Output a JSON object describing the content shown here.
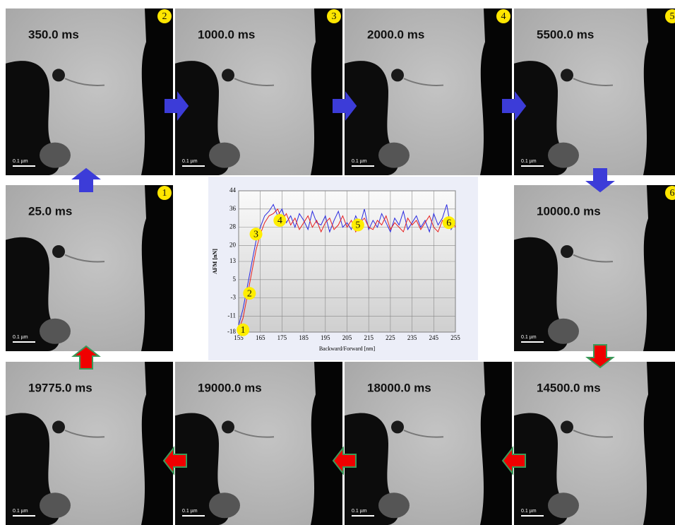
{
  "panels": [
    {
      "label": "350.0 ms",
      "badge": "2",
      "scale_bar": "0.1 µm"
    },
    {
      "label": "1000.0 ms",
      "badge": "3",
      "scale_bar": "0.1 µm"
    },
    {
      "label": "2000.0 ms",
      "badge": "4",
      "scale_bar": "0.1 µm"
    },
    {
      "label": "5500.0 ms",
      "badge": "5",
      "scale_bar": "0.1 µm"
    },
    {
      "label": "25.0 ms",
      "badge": "1",
      "scale_bar": "0.1 µm"
    },
    {
      "label": "10000.0 ms",
      "badge": "6",
      "scale_bar": "0.1 µm"
    },
    {
      "label": "19775.0 ms",
      "scale_bar": "0.1 µm"
    },
    {
      "label": "19000.0 ms",
      "scale_bar": "0.1 µm"
    },
    {
      "label": "18000.0 ms",
      "scale_bar": "0.1 µm"
    },
    {
      "label": "14500.0 ms",
      "scale_bar": "0.1 µm"
    }
  ],
  "chart_data": {
    "type": "line",
    "y_label": "AFM [nN]",
    "x_label": "Backward/Forward [nm]",
    "x": [
      155,
      157,
      159,
      161,
      163,
      165,
      167,
      169,
      171,
      173,
      175,
      177,
      179,
      181,
      183,
      185,
      187,
      189,
      191,
      193,
      195,
      197,
      199,
      201,
      203,
      205,
      207,
      209,
      211,
      213,
      215,
      217,
      219,
      221,
      223,
      225,
      227,
      229,
      231,
      233,
      235,
      237,
      239,
      241,
      243,
      245,
      247,
      249,
      251,
      253,
      255
    ],
    "series": [
      {
        "color": "#2a2ae0",
        "values": [
          -15,
          -8,
          2,
          12,
          22,
          28,
          33,
          35,
          38,
          33,
          36,
          30,
          33,
          28,
          34,
          31,
          27,
          35,
          30,
          29,
          33,
          26,
          31,
          35,
          28,
          30,
          27,
          33,
          29,
          36,
          27,
          31,
          28,
          34,
          30,
          26,
          32,
          29,
          35,
          27,
          30,
          33,
          28,
          31,
          26,
          34,
          29,
          32,
          38,
          27,
          30
        ]
      },
      {
        "color": "#e82020",
        "values": [
          -17,
          -12,
          -2,
          8,
          18,
          25,
          30,
          33,
          34,
          36,
          31,
          34,
          29,
          32,
          27,
          30,
          33,
          28,
          31,
          26,
          30,
          32,
          27,
          29,
          33,
          28,
          31,
          26,
          30,
          32,
          28,
          27,
          31,
          29,
          33,
          27,
          30,
          28,
          26,
          32,
          29,
          31,
          27,
          30,
          33,
          28,
          26,
          31,
          29,
          32,
          28
        ]
      }
    ],
    "xlim": [
      155,
      255
    ],
    "xticks": [
      155,
      165,
      175,
      185,
      195,
      205,
      215,
      225,
      235,
      245,
      255
    ],
    "ylim": [
      -18,
      44
    ],
    "yticks": [
      -18,
      -11,
      -3,
      5,
      13,
      20,
      28,
      36,
      44
    ],
    "grid": true,
    "annotations": [
      {
        "text": "1",
        "x": 157,
        "y": -17
      },
      {
        "text": "2",
        "x": 160,
        "y": -1
      },
      {
        "text": "3",
        "x": 163,
        "y": 25
      },
      {
        "text": "4",
        "x": 174,
        "y": 31
      },
      {
        "text": "5",
        "x": 210,
        "y": 29
      },
      {
        "text": "6",
        "x": 252,
        "y": 30
      }
    ]
  }
}
